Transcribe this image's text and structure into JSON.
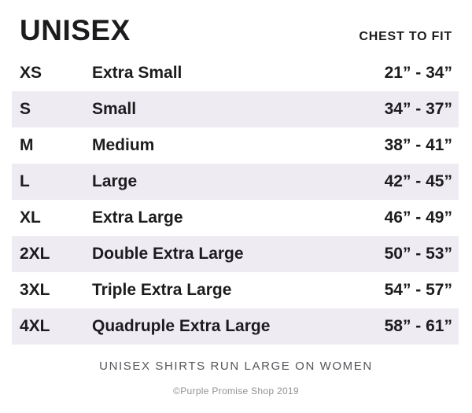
{
  "header": {
    "title": "UNISEX",
    "column_header": "CHEST TO FIT"
  },
  "table": {
    "rows": [
      {
        "code": "XS",
        "name": "Extra Small",
        "range": "21” - 34”",
        "shaded": false
      },
      {
        "code": "S",
        "name": "Small",
        "range": "34” - 37”",
        "shaded": true
      },
      {
        "code": "M",
        "name": "Medium",
        "range": "38” - 41”",
        "shaded": false
      },
      {
        "code": "L",
        "name": "Large",
        "range": "42” - 45”",
        "shaded": true
      },
      {
        "code": "XL",
        "name": "Extra Large",
        "range": "46” - 49”",
        "shaded": false
      },
      {
        "code": "2XL",
        "name": "Double Extra Large",
        "range": "50” - 53”",
        "shaded": true
      },
      {
        "code": "3XL",
        "name": "Triple Extra Large",
        "range": "54” - 57”",
        "shaded": false
      },
      {
        "code": "4XL",
        "name": "Quadruple Extra Large",
        "range": "58” - 61”",
        "shaded": true
      }
    ]
  },
  "footer": {
    "note": "UNISEX SHIRTS RUN LARGE ON WOMEN",
    "copyright": "©Purple Promise Shop 2019"
  },
  "colors": {
    "row_shade": "#efebf3",
    "text": "#1c1c1e",
    "note_gray": "#55565a",
    "copyright_gray": "#909194"
  }
}
